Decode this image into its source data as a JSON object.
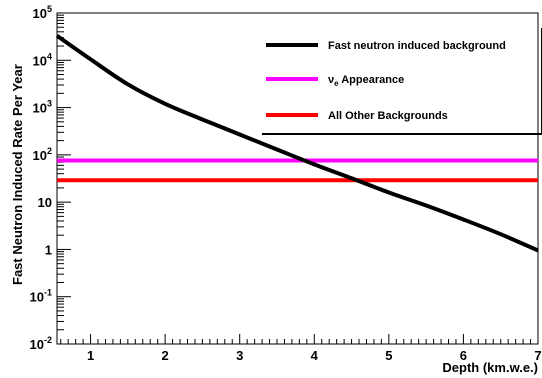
{
  "chart_data": {
    "type": "line",
    "title": "",
    "xlabel": "Depth (km.w.e.)",
    "ylabel": "Fast Neutron Induced Rate Per Year",
    "xlim": [
      0.55,
      7.0
    ],
    "ylim": [
      0.01,
      100000
    ],
    "yscale": "log",
    "grid": false,
    "legend_position": "top-right",
    "x_ticks": [
      {
        "value": 1,
        "label": "1"
      },
      {
        "value": 2,
        "label": "2"
      },
      {
        "value": 3,
        "label": "3"
      },
      {
        "value": 4,
        "label": "4"
      },
      {
        "value": 5,
        "label": "5"
      },
      {
        "value": 6,
        "label": "6"
      },
      {
        "value": 7,
        "label": "7"
      }
    ],
    "y_ticks": [
      {
        "value": 0.01,
        "base": "10",
        "exp": "-2",
        "label": ""
      },
      {
        "value": 0.1,
        "base": "10",
        "exp": "-1",
        "label": ""
      },
      {
        "value": 1,
        "base": "",
        "exp": "",
        "label": "1"
      },
      {
        "value": 10,
        "base": "",
        "exp": "",
        "label": "10"
      },
      {
        "value": 100,
        "base": "10",
        "exp": "2",
        "label": ""
      },
      {
        "value": 1000,
        "base": "10",
        "exp": "3",
        "label": ""
      },
      {
        "value": 10000,
        "base": "10",
        "exp": "4",
        "label": ""
      },
      {
        "value": 100000,
        "base": "10",
        "exp": "5",
        "label": ""
      }
    ],
    "series": [
      {
        "name": "Fast neutron induced background",
        "color": "#000000",
        "x": [
          0.55,
          1.0,
          1.5,
          2.0,
          2.5,
          3.0,
          3.5,
          4.0,
          4.5,
          5.0,
          5.5,
          6.0,
          6.5,
          7.0
        ],
        "y": [
          33000,
          10500,
          3100,
          1200,
          560,
          270,
          130,
          63,
          32,
          16,
          8.5,
          4.3,
          2.1,
          0.95
        ]
      },
      {
        "name_parts": [
          "ν",
          "e",
          " Appearance"
        ],
        "color": "#ff00ff",
        "x": [
          0.55,
          7.0
        ],
        "y": [
          76,
          76
        ]
      },
      {
        "name": "All Other Backgrounds",
        "color": "#ff0000",
        "x": [
          0.55,
          7.0
        ],
        "y": [
          29,
          29
        ]
      }
    ]
  }
}
